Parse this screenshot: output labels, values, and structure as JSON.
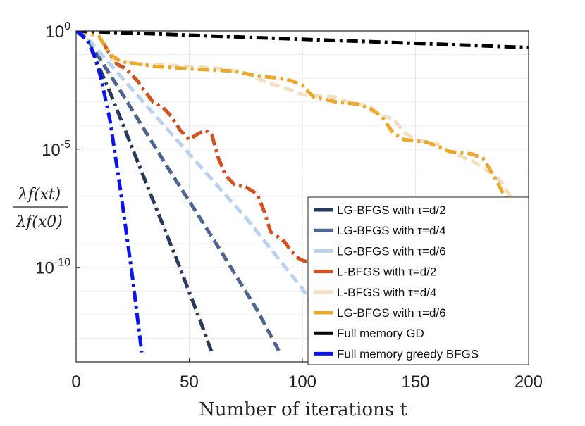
{
  "chart_data": {
    "type": "line",
    "xlabel": "Number of iterations t",
    "ylabel_numerator": "λf(xt)",
    "ylabel_denominator": "λf(x0)",
    "xlim": [
      0,
      200
    ],
    "ylim_exponent": [
      -14,
      0
    ],
    "y_scale": "log",
    "grid": true,
    "legend_placement": "bottom-right",
    "x_ticks": [
      "0",
      "50",
      "100",
      "150",
      "200"
    ],
    "y_ticks": [
      {
        "base": "10",
        "exp": "0",
        "value_exp": 0
      },
      {
        "base": "10",
        "exp": "-5",
        "value_exp": -5
      },
      {
        "base": "10",
        "exp": "-10",
        "value_exp": -10
      }
    ],
    "series": [
      {
        "name": "LG-BFGS with τ=d/2",
        "color": "#2a3a5c",
        "dash": "dashdot",
        "x": [
          0,
          5,
          15,
          25,
          35,
          45,
          55,
          60
        ],
        "log10_y": [
          0,
          -0.4,
          -2.6,
          -5.0,
          -7.4,
          -9.8,
          -12.3,
          -13.6
        ]
      },
      {
        "name": "LG-BFGS with τ=d/4",
        "color": "#4e6591",
        "dash": "dash",
        "x": [
          0,
          5,
          20,
          40,
          60,
          80,
          90
        ],
        "log10_y": [
          0,
          -0.35,
          -2.6,
          -5.7,
          -8.7,
          -11.8,
          -13.6
        ]
      },
      {
        "name": "LG-BFGS with τ=d/6",
        "color": "#b9d3ef",
        "dash": "dash",
        "x": [
          0,
          5,
          25,
          50,
          75,
          100,
          105
        ],
        "log10_y": [
          0,
          -0.3,
          -2.5,
          -5.2,
          -7.9,
          -10.9,
          -11.7
        ]
      },
      {
        "name": "L-BFGS with τ=d/2",
        "color": "#d4521f",
        "dash": "dashdot",
        "x": [
          12,
          15,
          18,
          22,
          27,
          30,
          34,
          38,
          42,
          46,
          50,
          53,
          57,
          60,
          63,
          66,
          70,
          75,
          80,
          83,
          86,
          89,
          92,
          95,
          98,
          100,
          103
        ],
        "log10_y": [
          -0.5,
          -1.0,
          -1.4,
          -1.6,
          -2.1,
          -2.5,
          -3.0,
          -3.2,
          -3.6,
          -4.2,
          -4.6,
          -4.4,
          -4.2,
          -4.4,
          -5.4,
          -6.1,
          -6.5,
          -6.6,
          -6.9,
          -7.6,
          -8.5,
          -8.7,
          -8.9,
          -9.3,
          -9.6,
          -9.7,
          -9.8
        ]
      },
      {
        "name": "L-BFGS with τ=d/4",
        "color": "#f2dfc2",
        "dash": "dash",
        "x": [
          15,
          30,
          50,
          65,
          75,
          85,
          95,
          100,
          115,
          120,
          130,
          135,
          140,
          145,
          150,
          160,
          165,
          170,
          175,
          180,
          185,
          188,
          192,
          196,
          200
        ],
        "log10_y": [
          -1.2,
          -1.4,
          -1.5,
          -1.6,
          -1.8,
          -2.2,
          -2.5,
          -2.7,
          -2.8,
          -3.0,
          -3.2,
          -3.6,
          -3.7,
          -4.3,
          -4.6,
          -4.8,
          -5.1,
          -5.3,
          -5.5,
          -5.8,
          -6.1,
          -6.4,
          -7.0,
          -7.4,
          -7.7
        ]
      },
      {
        "name": "LG-BFGS with τ=d/6",
        "color": "#eaa92a",
        "dash": "dashdot",
        "x": [
          0,
          10,
          15,
          20,
          35,
          50,
          70,
          80,
          90,
          95,
          100,
          105,
          115,
          125,
          130,
          135,
          140,
          145,
          155,
          165,
          175,
          180,
          185,
          190,
          195,
          200
        ],
        "log10_y": [
          0,
          -0.2,
          -1.0,
          -1.3,
          -1.5,
          -1.6,
          -1.7,
          -1.9,
          -2.0,
          -2.1,
          -2.3,
          -2.8,
          -3.0,
          -3.1,
          -3.3,
          -3.6,
          -4.3,
          -4.6,
          -4.7,
          -5.1,
          -5.2,
          -5.4,
          -6.2,
          -7.1,
          -7.2,
          -7.2
        ]
      },
      {
        "name": "Full memory GD",
        "color": "#000000",
        "dash": "dashdot",
        "x": [
          0,
          50,
          100,
          150,
          200
        ],
        "log10_y": [
          0,
          -0.18,
          -0.35,
          -0.52,
          -0.7
        ]
      },
      {
        "name": "Full memory greedy BFGS",
        "color": "#0a14f0",
        "dash": "dashdot",
        "x": [
          0,
          2,
          5,
          8,
          11,
          15,
          20,
          25,
          29
        ],
        "log10_y": [
          0,
          -0.1,
          -0.4,
          -1.0,
          -2.0,
          -3.8,
          -7.0,
          -10.5,
          -13.6
        ]
      }
    ]
  }
}
